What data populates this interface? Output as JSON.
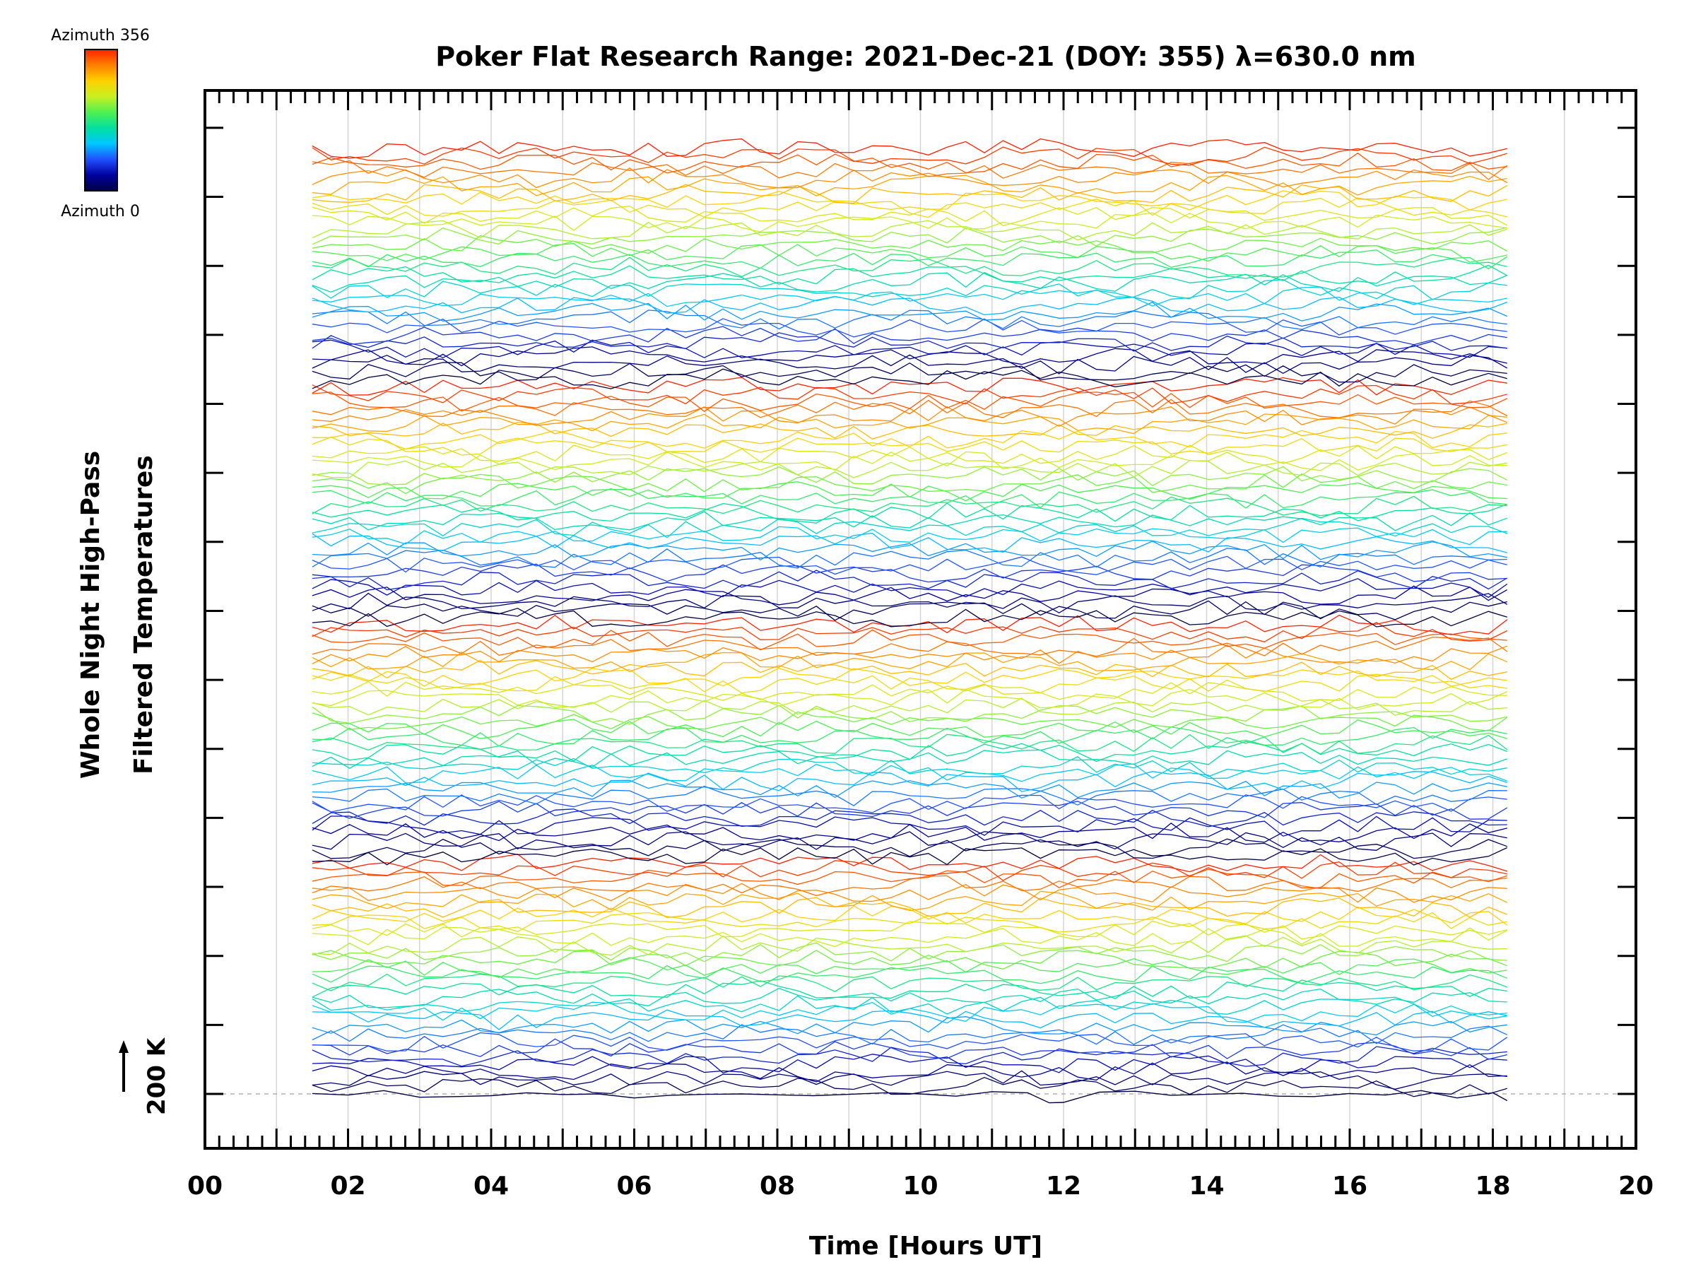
{
  "chart_data": {
    "type": "line",
    "title": "Poker Flat Research Range: 2021-Dec-21 (DOY: 355) λ=630.0 nm",
    "xlabel": "Time [Hours UT]",
    "ylabel_line1": "Whole Night High-Pass",
    "ylabel_line2": "Filtered Temperatures",
    "xlim": [
      0,
      20
    ],
    "x_ticks": [
      "00",
      "02",
      "04",
      "06",
      "08",
      "10",
      "12",
      "14",
      "16",
      "18",
      "20"
    ],
    "grid": "vertical lines every hour",
    "scale_bar_label": "200 K",
    "colorbar": {
      "top_label": "Azimuth 356",
      "bottom_label": "Azimuth 0",
      "min": 0,
      "max": 356
    },
    "data_start_hour": 1.5,
    "data_end_hour": 18.2,
    "series_count": 128,
    "series_note": "stacked high-pass filtered temperature traces, one per azimuth, offset vertically and colored by azimuth",
    "baseline_series": {
      "name": "Azimuth 0",
      "x": [
        1.5,
        2.0,
        2.5,
        3.0,
        3.5,
        4.0,
        4.5,
        5.0,
        5.5,
        6.0,
        6.5,
        7.0,
        7.5,
        8.0,
        8.5,
        9.0,
        9.5,
        10.0,
        10.5,
        11.0,
        11.5,
        11.8,
        12.0,
        12.5,
        13.0,
        13.5,
        14.0,
        14.5,
        15.0,
        15.5,
        16.0,
        16.5,
        17.0,
        17.5,
        18.0,
        18.2
      ],
      "y": [
        2,
        -5,
        15,
        -15,
        -12,
        -8,
        5,
        -3,
        0,
        -18,
        -6,
        -2,
        0,
        -4,
        -8,
        -2,
        5,
        0,
        -10,
        10,
        5,
        -40,
        -38,
        8,
        12,
        -6,
        -2,
        3,
        -10,
        -12,
        2,
        -5,
        15,
        -18,
        5,
        -30
      ]
    }
  },
  "colors": {
    "colormap": [
      "#000040",
      "#0000a0",
      "#2050ff",
      "#00c8ff",
      "#00e0a0",
      "#50f050",
      "#c8f020",
      "#ffd000",
      "#ff8000",
      "#ff2000"
    ],
    "frame": "#000000",
    "grid": "#d6d6d6",
    "zero_line": "#b0b0b0"
  }
}
